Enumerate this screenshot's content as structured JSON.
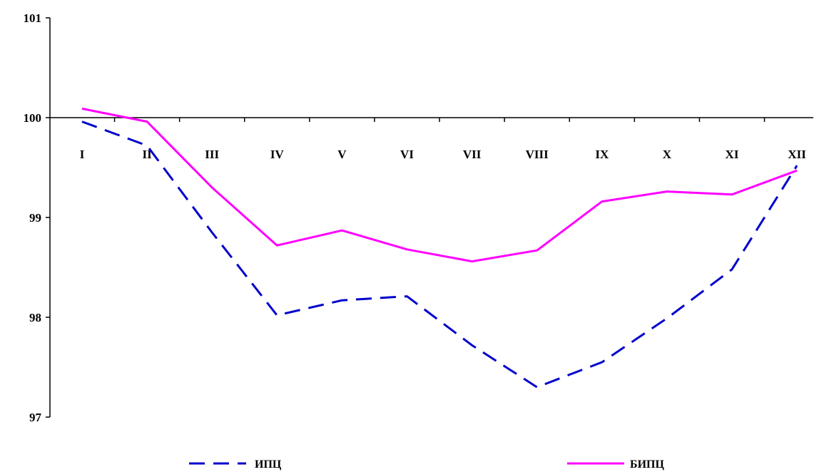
{
  "chart_data": {
    "type": "line",
    "title": "",
    "xlabel": "",
    "ylabel": "",
    "categories": [
      "I",
      "II",
      "III",
      "IV",
      "V",
      "VI",
      "VII",
      "VIII",
      "IX",
      "X",
      "XI",
      "XII"
    ],
    "y_ticks": [
      "97",
      "98",
      "99",
      "100",
      "101"
    ],
    "ylim": [
      97,
      101
    ],
    "x_axis_crosses_at": 100,
    "grid": false,
    "legend_position": "bottom",
    "series": [
      {
        "name": "ИПЦ",
        "color": "#0000CC",
        "line_style": "dashed",
        "values": [
          99.96,
          99.72,
          98.85,
          98.02,
          98.17,
          98.21,
          97.72,
          97.3,
          97.55,
          97.99,
          98.48,
          99.52
        ]
      },
      {
        "name": "БИПЦ",
        "color": "#FF00FF",
        "line_style": "solid",
        "values": [
          100.09,
          99.96,
          99.3,
          98.72,
          98.87,
          98.68,
          98.56,
          98.67,
          99.16,
          99.26,
          99.23,
          99.47
        ]
      }
    ]
  }
}
